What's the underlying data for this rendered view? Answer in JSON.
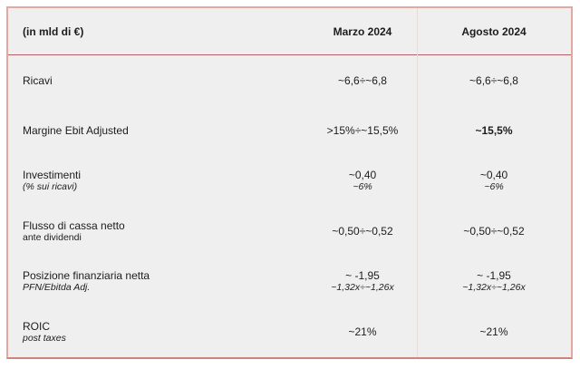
{
  "colors": {
    "table_background": "#f0efef",
    "outer_border": "#e4a8a1",
    "bottom_border": "#cf837d",
    "header_separator": "#b26168",
    "column_separator": "#e8dcda",
    "text": "#1c1c1c"
  },
  "table": {
    "unit_label": "(in mld di €)",
    "columns": [
      {
        "label": "Marzo 2024"
      },
      {
        "label": "Agosto 2024"
      }
    ],
    "rows": [
      {
        "label": "Ricavi",
        "marzo": "~6,6÷~6,8",
        "agosto": "~6,6÷~6,8"
      },
      {
        "label": "Margine Ebit Adjusted",
        "marzo": ">15%÷~15,5%",
        "agosto": "~15,5%"
      },
      {
        "label": "Investimenti",
        "sublabel": "(% sui ricavi)",
        "marzo": "~0,40",
        "marzo_sub": "~6%",
        "agosto": "~0,40",
        "agosto_sub": "~6%"
      },
      {
        "label": "Flusso di cassa netto",
        "sublabel": "ante dividendi",
        "marzo": "~0,50÷~0,52",
        "agosto": "~0,50÷~0,52"
      },
      {
        "label": "Posizione finanziaria netta",
        "sublabel": "PFN/Ebitda Adj.",
        "marzo": "~ -1,95",
        "marzo_sub": "~1,32x÷~1,26x",
        "agosto": "~ -1,95",
        "agosto_sub": "~1,32x÷~1,26x"
      },
      {
        "label": "ROIC",
        "sublabel": "post taxes",
        "marzo": "~21%",
        "agosto": "~21%"
      }
    ]
  }
}
